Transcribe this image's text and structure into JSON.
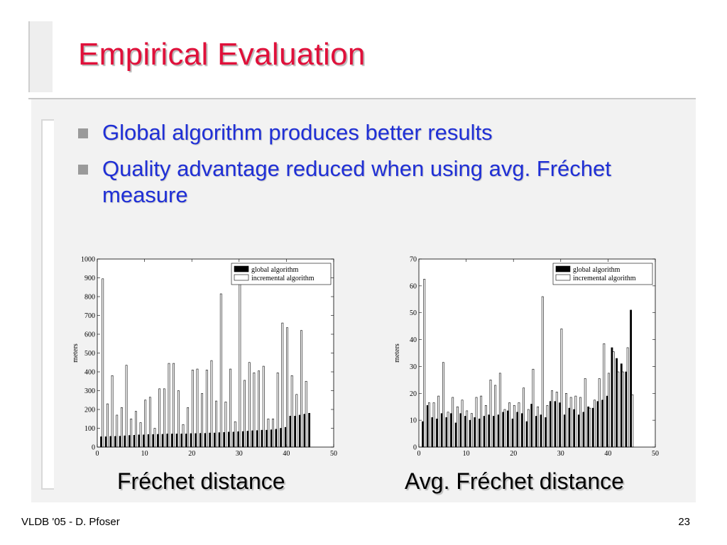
{
  "slide": {
    "title": "Empirical Evaluation",
    "bullets": [
      "Global algorithm produces better results",
      "Quality advantage reduced when using avg. Fréchet measure"
    ],
    "captions": [
      "Fréchet distance",
      "Avg. Fréchet distance"
    ],
    "footer_left": "VLDB '05 - D. Pfoser",
    "page_number": "23",
    "colors": {
      "title": "#e0103a",
      "bullet_text": "#1f2fd6",
      "bullet_marker": "#9a9a9a",
      "panel": "#f2f2f2"
    }
  },
  "chart_data": [
    {
      "type": "bar",
      "ylabel": "meters",
      "xlim": [
        0,
        50
      ],
      "ylim": [
        0,
        1000
      ],
      "xticks": [
        0,
        10,
        20,
        30,
        40,
        50
      ],
      "yticks": [
        0,
        100,
        200,
        300,
        400,
        500,
        600,
        700,
        800,
        900,
        1000
      ],
      "legend_position": "top-right",
      "x": [
        1,
        2,
        3,
        4,
        5,
        6,
        7,
        8,
        9,
        10,
        11,
        12,
        13,
        14,
        15,
        16,
        17,
        18,
        19,
        20,
        21,
        22,
        23,
        24,
        25,
        26,
        27,
        28,
        29,
        30,
        31,
        32,
        33,
        34,
        35,
        36,
        37,
        38,
        39,
        40,
        41,
        42,
        43,
        44,
        45
      ],
      "series": [
        {
          "name": "global algorithm",
          "fill": "#000000",
          "values": [
            55,
            55,
            57,
            57,
            58,
            60,
            62,
            63,
            65,
            65,
            67,
            67,
            68,
            68,
            70,
            70,
            70,
            70,
            70,
            72,
            72,
            73,
            73,
            75,
            75,
            77,
            78,
            80,
            80,
            82,
            83,
            85,
            87,
            88,
            90,
            90,
            92,
            95,
            100,
            105,
            165,
            165,
            170,
            175,
            180
          ]
        },
        {
          "name": "incremental algorithm",
          "fill": "#ffffff",
          "values": [
            895,
            230,
            380,
            170,
            210,
            435,
            150,
            190,
            130,
            250,
            265,
            100,
            310,
            310,
            445,
            445,
            300,
            120,
            210,
            410,
            415,
            285,
            410,
            460,
            245,
            815,
            240,
            415,
            135,
            880,
            355,
            450,
            395,
            405,
            430,
            150,
            150,
            395,
            660,
            635,
            380,
            280,
            620,
            350,
            0
          ]
        }
      ]
    },
    {
      "type": "bar",
      "ylabel": "meters",
      "xlim": [
        0,
        50
      ],
      "ylim": [
        0,
        70
      ],
      "xticks": [
        0,
        10,
        20,
        30,
        40,
        50
      ],
      "yticks": [
        0,
        10,
        20,
        30,
        40,
        50,
        60,
        70
      ],
      "legend_position": "top-right",
      "x": [
        1,
        2,
        3,
        4,
        5,
        6,
        7,
        8,
        9,
        10,
        11,
        12,
        13,
        14,
        15,
        16,
        17,
        18,
        19,
        20,
        21,
        22,
        23,
        24,
        25,
        26,
        27,
        28,
        29,
        30,
        31,
        32,
        33,
        34,
        35,
        36,
        37,
        38,
        39,
        40,
        41,
        42,
        43,
        44,
        45
      ],
      "series": [
        {
          "name": "global algorithm",
          "fill": "#000000",
          "values": [
            9.5,
            15.5,
            11,
            10.5,
            12.5,
            11,
            12.5,
            9,
            12.5,
            11.5,
            10,
            11,
            10.5,
            11.5,
            12,
            11.5,
            12,
            13,
            13.5,
            10.5,
            13,
            12.5,
            9.5,
            16,
            11.5,
            12,
            11,
            17,
            17,
            16.5,
            12,
            14.5,
            14,
            12,
            13,
            15,
            14.5,
            17,
            17.5,
            19,
            37,
            33,
            31,
            28,
            51
          ]
        },
        {
          "name": "incremental algorithm",
          "fill": "#ffffff",
          "values": [
            62.5,
            16.5,
            16.5,
            19,
            31.5,
            13,
            18.5,
            15,
            17.5,
            13.5,
            12.5,
            18.5,
            19,
            15.5,
            25,
            23,
            27.5,
            14,
            16.5,
            15.5,
            16.5,
            22,
            14,
            29,
            15,
            56,
            15.5,
            21,
            20.5,
            44,
            20,
            18.5,
            19,
            18.5,
            25.5,
            14.5,
            17.5,
            25.5,
            38.5,
            27.5,
            35.5,
            28,
            28,
            37,
            19.5
          ]
        }
      ]
    }
  ]
}
